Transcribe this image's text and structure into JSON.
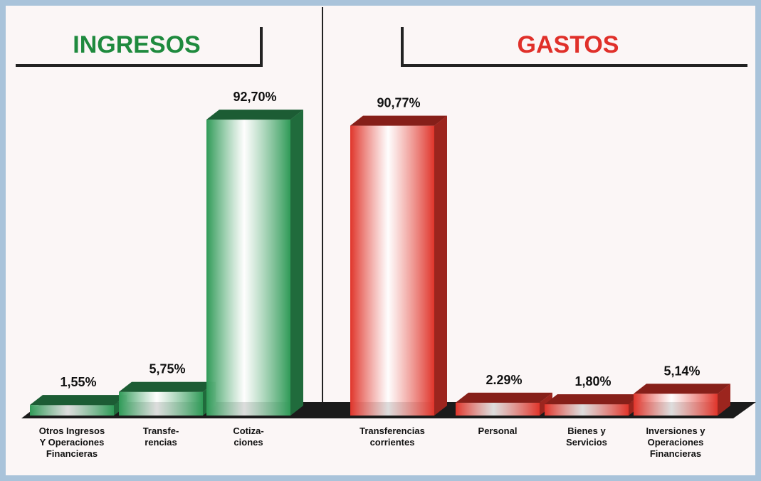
{
  "chart_data": [
    {
      "type": "bar",
      "title": "INGRESOS",
      "title_color": "#1f8a3e",
      "categories": [
        "Otros Ingresos\nY Operaciones\nFinancieras",
        "Transfe-\nrencias",
        "Cotiza-\nciones"
      ],
      "values": [
        1.55,
        5.75,
        92.7
      ],
      "value_labels": [
        "1,55%",
        "5,75%",
        "92,70%"
      ],
      "color": "#2f9a57"
    },
    {
      "type": "bar",
      "title": "GASTOS",
      "title_color": "#e0302a",
      "categories": [
        "Transferencias\ncorrientes",
        "Personal",
        "Bienes y\nServicios",
        "Inversiones y\nOperaciones\nFinancieras"
      ],
      "values": [
        90.77,
        2.29,
        1.8,
        5.14
      ],
      "value_labels": [
        "90,77%",
        "2.29%",
        "1,80%",
        "5,14%"
      ],
      "color": "#e0352b"
    }
  ]
}
